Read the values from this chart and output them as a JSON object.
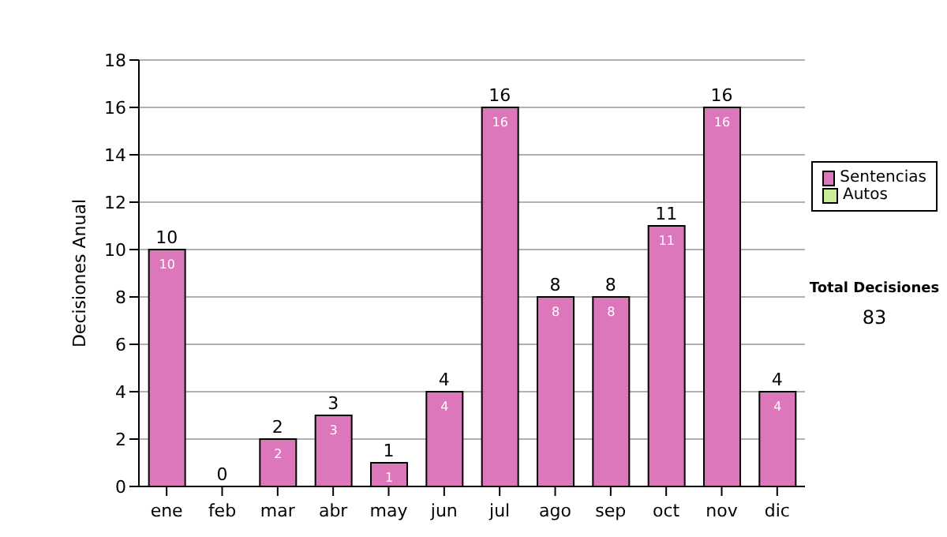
{
  "chart_data": {
    "type": "bar",
    "stacked": true,
    "ylabel": "Decisiones Anual",
    "categories": [
      "ene",
      "feb",
      "mar",
      "abr",
      "may",
      "jun",
      "jul",
      "ago",
      "sep",
      "oct",
      "nov",
      "dic"
    ],
    "series": [
      {
        "name": "Sentencias",
        "color": "#dd77bb",
        "values": [
          10,
          0,
          2,
          3,
          1,
          4,
          16,
          8,
          8,
          11,
          16,
          4
        ],
        "value_labels": [
          "10",
          null,
          "2",
          "3",
          "1",
          "4",
          "16",
          "8",
          "8",
          "11",
          "16",
          "4"
        ]
      },
      {
        "name": "Autos",
        "color": "#ccee99",
        "values": [
          0,
          0,
          0,
          0,
          0,
          0,
          0,
          0,
          0,
          0,
          0,
          0
        ]
      }
    ],
    "totals": [
      "10",
      "0",
      "2",
      "3",
      "1",
      "4",
      "16",
      "8",
      "8",
      "11",
      "16",
      "4"
    ],
    "ylim": [
      0,
      18
    ],
    "yticks": [
      0,
      2,
      4,
      6,
      8,
      10,
      12,
      14,
      16,
      18
    ],
    "grid": "y",
    "legend": "right",
    "annotations": [
      "Total Decisiones",
      "83"
    ]
  }
}
